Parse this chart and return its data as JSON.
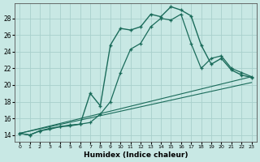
{
  "xlabel": "Humidex (Indice chaleur)",
  "bg_color": "#c8e8e4",
  "grid_color": "#a8d0cc",
  "line_color": "#1a6b5a",
  "xlim": [
    -0.5,
    23.5
  ],
  "ylim": [
    13.2,
    29.8
  ],
  "yticks": [
    14,
    16,
    18,
    20,
    22,
    24,
    26,
    28
  ],
  "xticks": [
    0,
    1,
    2,
    3,
    4,
    5,
    6,
    7,
    8,
    9,
    10,
    11,
    12,
    13,
    14,
    15,
    16,
    17,
    18,
    19,
    20,
    21,
    22,
    23
  ],
  "curve1_x": [
    0,
    1,
    2,
    3,
    4,
    5,
    6,
    7,
    8,
    9,
    10,
    11,
    12,
    13,
    14,
    15,
    16,
    17,
    18,
    19,
    20,
    21,
    22,
    23
  ],
  "curve1_y": [
    14.2,
    14.0,
    14.5,
    14.8,
    15.0,
    15.2,
    15.3,
    15.5,
    16.5,
    18.0,
    21.5,
    24.3,
    25.0,
    27.0,
    28.0,
    27.8,
    28.5,
    25.0,
    22.0,
    23.2,
    23.5,
    22.0,
    21.5,
    21.0
  ],
  "curve2_x": [
    0,
    1,
    2,
    3,
    4,
    5,
    6,
    7,
    8,
    9,
    10,
    11,
    12,
    13,
    14,
    15,
    16,
    17,
    18,
    19,
    20,
    21,
    22,
    23
  ],
  "curve2_y": [
    14.2,
    14.0,
    14.5,
    14.7,
    15.0,
    15.1,
    15.3,
    19.0,
    17.5,
    24.8,
    26.8,
    26.6,
    27.0,
    28.5,
    28.2,
    29.4,
    29.0,
    28.3,
    24.8,
    22.5,
    23.2,
    21.8,
    21.2,
    20.9
  ],
  "line1_x": [
    0,
    23
  ],
  "line1_y": [
    14.2,
    21.0
  ],
  "line2_x": [
    0,
    23
  ],
  "line2_y": [
    14.2,
    20.3
  ]
}
